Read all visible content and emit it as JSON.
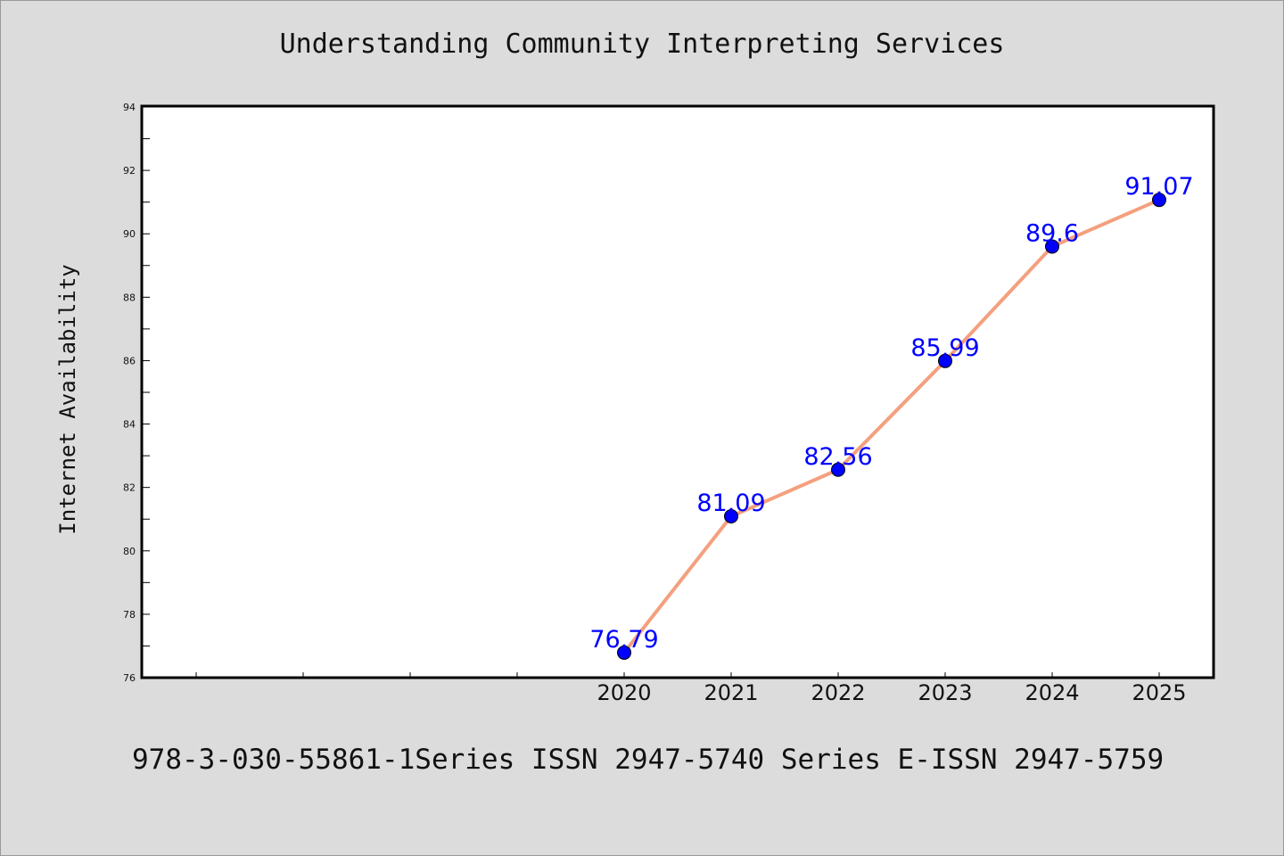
{
  "chart_data": {
    "type": "line",
    "title": "Understanding Community Interpreting Services",
    "xlabel": "",
    "ylabel": "Internet Availability",
    "categories": [
      "2020",
      "2021",
      "2022",
      "2023",
      "2024",
      "2025"
    ],
    "series": [
      {
        "values": [
          76.79,
          81.09,
          82.56,
          85.99,
          89.6,
          91.07
        ],
        "line_color": "#f4a07e",
        "marker_color": "#0000ff"
      }
    ],
    "data_labels": [
      "76.79",
      "81.09",
      "82.56",
      "85.99",
      "89.6",
      "91.07"
    ],
    "data_label_color": "#0000ff",
    "ylim": [
      76,
      94
    ],
    "yticks": [
      76,
      78,
      80,
      82,
      84,
      86,
      88,
      90,
      92,
      94
    ],
    "grid": false,
    "legend": "none"
  },
  "footer": {
    "text": "978-3-030-55861-1Series ISSN 2947-5740 Series E-ISSN 2947-5759"
  }
}
